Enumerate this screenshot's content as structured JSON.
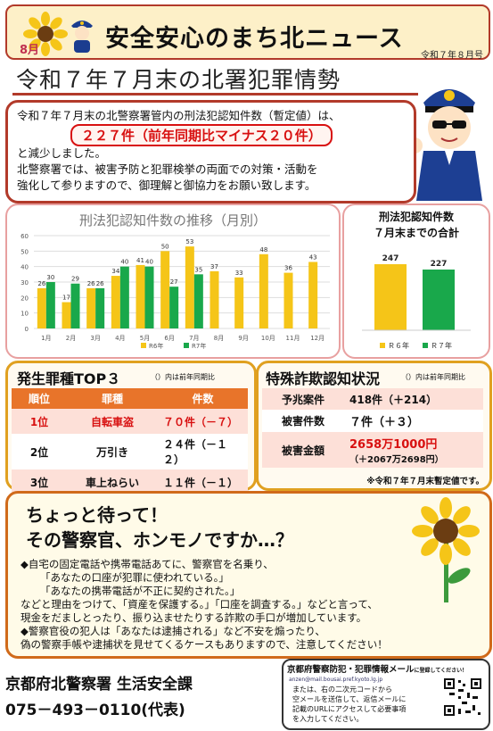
{
  "header": {
    "title": "安全安心のまち北ニュース",
    "date": "令和７年８月号",
    "logo_month": "8月"
  },
  "headline": "令和７年７月末の北署犯罪情勢",
  "intro": {
    "line1": "令和７年７月末の北警察署管内の刑法犯認知件数（暫定値）は、",
    "highlight": "２２７件（前年同期比マイナス２０件）",
    "line2": "と減少しました。",
    "line3": "北警察署では、被害予防と犯罪検挙の両面での対策・活動を",
    "line4": "強化して参りますので、御理解と御協力をお願い致します。"
  },
  "chart_data": [
    {
      "type": "bar",
      "title": "刑法犯認知件数の推移（月別）",
      "categories": [
        "1月",
        "2月",
        "3月",
        "4月",
        "5月",
        "6月",
        "7月",
        "8月",
        "9月",
        "10月",
        "11月",
        "12月"
      ],
      "series": [
        {
          "name": "R6年",
          "values": [
            26,
            17,
            26,
            34,
            41,
            50,
            53,
            37,
            33,
            48,
            36,
            43
          ]
        },
        {
          "name": "R7年",
          "values": [
            30,
            29,
            26,
            40,
            40,
            27,
            35,
            null,
            null,
            null,
            null,
            null
          ]
        }
      ],
      "ylim": [
        0,
        60
      ],
      "yticks": [
        "0",
        "10",
        "20",
        "30",
        "40",
        "50",
        "60"
      ],
      "colors": {
        "r6": "#f5c518",
        "r7": "#19a84b"
      },
      "legend": "bottom"
    },
    {
      "type": "bar",
      "title": "刑法犯認知件数",
      "subtitle": "７月末までの合計",
      "categories": [
        "Ｒ６年",
        "Ｒ７年"
      ],
      "values": [
        247,
        227
      ],
      "colors": {
        "r6": "#f5c518",
        "r7": "#19a84b"
      },
      "legend": "bottom"
    }
  ],
  "top3": {
    "title": "発生罪種TOP３",
    "note": "（）内は前年同期比",
    "headers": [
      "順位",
      "罪種",
      "件数"
    ],
    "rows": [
      {
        "rank": "1位",
        "crime": "自転車盗",
        "count": "７０件（－７）"
      },
      {
        "rank": "2位",
        "crime": "万引き",
        "count": "２４件（－１２）"
      },
      {
        "rank": "3位",
        "crime": "車上ねらい",
        "count": "１１件（－１）"
      }
    ]
  },
  "fraud": {
    "title": "特殊詐欺認知状況",
    "note": "（）内は前年同期比",
    "rows": [
      {
        "label": "予兆案件",
        "value": "418件（＋214）"
      },
      {
        "label": "被害件数",
        "value": "７件（＋３）"
      },
      {
        "label": "被害金額",
        "value": "2658万1000円",
        "sub": "（＋2067万2698円）"
      }
    ],
    "footnote": "※令和７年７月末暫定値です。"
  },
  "warning": {
    "title1": "ちょっと待って！",
    "title2": "その警察官、ホンモノですか…？",
    "lines": [
      "◆自宅の固定電話や携帯電話あてに、警察官を名乗り、",
      "「あなたの口座が犯罪に使われている。」",
      "「あなたの携帯電話が不正に契約された。」",
      "などと理由をつけて、「資産を保護する。」「口座を調査する。」などと言って、",
      "現金をだましとったり、振り込ませたりする詐欺の手口が増加しています。",
      "◆警察官役の犯人は「あなたは逮捕される」など不安を煽ったり、",
      "偽の警察手帳や逮捕状を見せてくるケースもありますので、注意してください！"
    ]
  },
  "contact": {
    "org": "京都府北警察署 生活安全課",
    "phone": "075－493－0110(代表)"
  },
  "mail": {
    "title": "京都府警察防犯・犯罪情報メール",
    "title_note": "に登録してください！",
    "address": "anzen@mail.bousai.pref.kyoto.lg.jp",
    "text1": "または、右の二次元コードから",
    "text2": "空メールを送信して、返信メールに",
    "text3": "記載のURLにアクセスして必要事項",
    "text4": "を入力してください。"
  }
}
